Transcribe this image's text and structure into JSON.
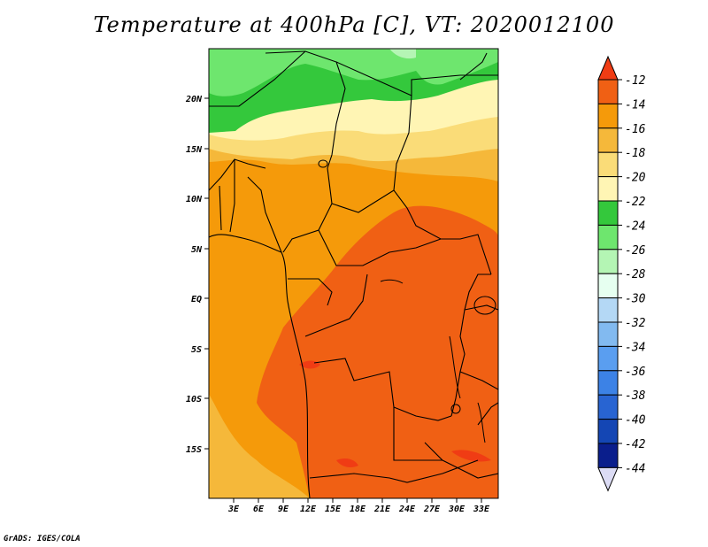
{
  "title": "Temperature at 400hPa [C], VT: 2020012100",
  "credit": "GrADS: IGES/COLA",
  "map": {
    "lat_labels": [
      "20N",
      "15N",
      "10N",
      "5N",
      "EQ",
      "5S",
      "10S",
      "15S"
    ],
    "lon_labels": [
      "3E",
      "6E",
      "9E",
      "12E",
      "15E",
      "18E",
      "21E",
      "24E",
      "27E",
      "30E",
      "33E"
    ]
  },
  "colorbar": {
    "labels": [
      "-12",
      "-14",
      "-16",
      "-18",
      "-20",
      "-22",
      "-24",
      "-26",
      "-28",
      "-30",
      "-32",
      "-34",
      "-36",
      "-38",
      "-40",
      "-42",
      "-44"
    ],
    "colors": {
      "above_-12": "#f03c14",
      "-14_-12": "#f06014",
      "-16_-14": "#f59a0a",
      "-18_-16": "#f5b83a",
      "-20_-18": "#fadc78",
      "-22_-20": "#fff5b4",
      "-24_-22": "#34c83c",
      "-26_-24": "#6ee66e",
      "-28_-26": "#b4f5b4",
      "-30_-28": "#e6fff0",
      "-32_-30": "#b4d8f5",
      "-34_-32": "#82baf0",
      "-36_-34": "#5a9ef0",
      "-38_-36": "#3c82e6",
      "-40_-38": "#2864d2",
      "-42_-40": "#1446b4",
      "-44_-42": "#0a1e8c",
      "below_-44": "#dcdcf5"
    }
  }
}
